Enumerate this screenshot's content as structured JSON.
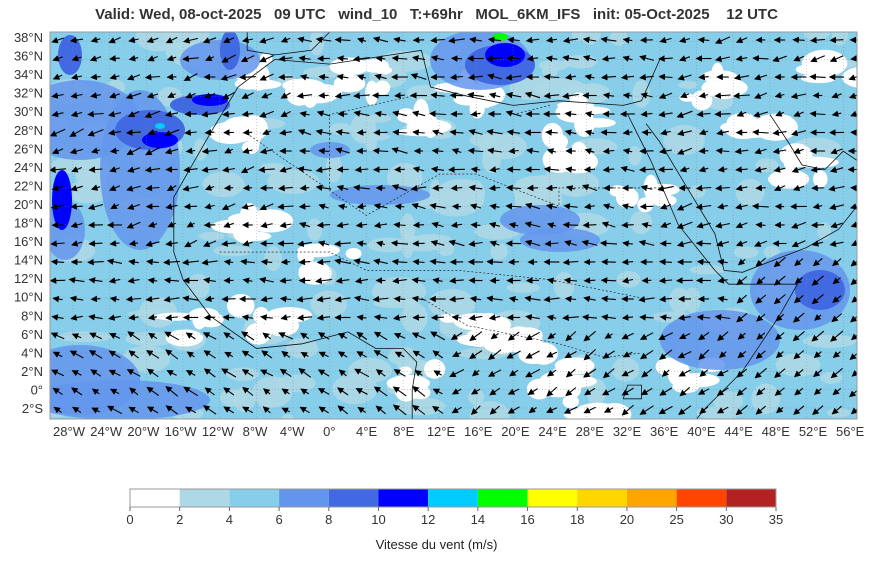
{
  "title": "Valid: Wed, 08-oct-2025   09 UTC   wind_10   T:+69hr   MOL_6KM_IFS   init: 05-Oct-2025    12 UTC",
  "map": {
    "lat_labels": [
      "38°N",
      "36°N",
      "34°N",
      "32°N",
      "30°N",
      "28°N",
      "26°N",
      "24°N",
      "22°N",
      "20°N",
      "18°N",
      "16°N",
      "14°N",
      "12°N",
      "10°N",
      "8°N",
      "6°N",
      "4°N",
      "2°N",
      "0°",
      "2°S"
    ],
    "lon_labels": [
      "28°W",
      "24°W",
      "20°W",
      "16°W",
      "12°W",
      "8°W",
      "4°W",
      "0°",
      "4°E",
      "8°E",
      "12°E",
      "16°E",
      "20°E",
      "24°E",
      "28°E",
      "32°E",
      "36°E",
      "40°E",
      "44°E",
      "48°E",
      "52°E",
      "56°E"
    ],
    "wind_field_colors": {
      "calm": "#ffffff",
      "light": "#add8e6",
      "moderate": "#87ceeb",
      "fresh": "#6495ed",
      "strong": "#4169e1",
      "very_strong": "#0000ff"
    }
  },
  "colorbar": {
    "ticks": [
      "0",
      "2",
      "4",
      "6",
      "8",
      "10",
      "12",
      "14",
      "16",
      "18",
      "20",
      "25",
      "30",
      "35"
    ],
    "colors": [
      "#ffffff",
      "#add8e6",
      "#87ceeb",
      "#6495ed",
      "#4169e1",
      "#0000ff",
      "#00ccff",
      "#00ff00",
      "#ffff00",
      "#ffd700",
      "#ffa500",
      "#ff4500",
      "#b22222"
    ],
    "label": "Vitesse du vent (m/s)"
  }
}
